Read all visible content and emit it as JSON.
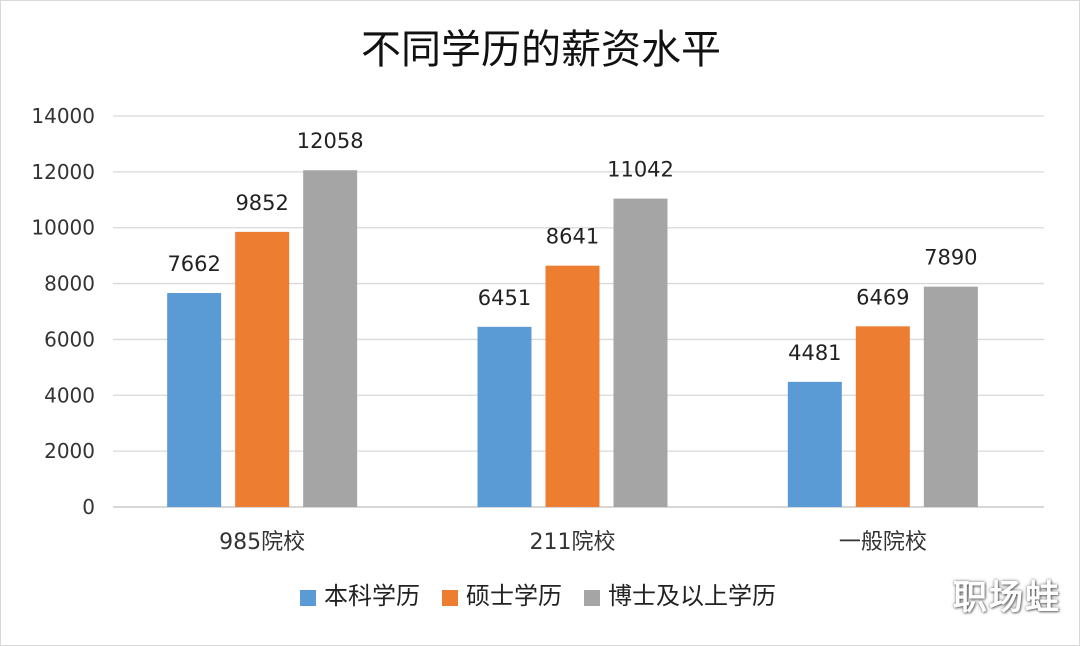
{
  "watermark": "职场蛙",
  "chart_data": {
    "type": "bar",
    "title": "不同学历的薪资水平",
    "xlabel": "",
    "ylabel": "",
    "categories": [
      "985院校",
      "211院校",
      "一般院校"
    ],
    "series": [
      {
        "name": "本科学历",
        "values": [
          7662,
          6451,
          4481
        ],
        "color": "#5b9bd5"
      },
      {
        "name": "硕士学历",
        "values": [
          9852,
          8641,
          6469
        ],
        "color": "#ed7d31"
      },
      {
        "name": "博士及以上学历",
        "values": [
          12058,
          11042,
          7890
        ],
        "color": "#a5a5a5"
      }
    ],
    "ylim": [
      0,
      14000
    ],
    "yticks": [
      0,
      2000,
      4000,
      6000,
      8000,
      10000,
      12000,
      14000
    ],
    "grid": true,
    "legend_position": "bottom"
  }
}
